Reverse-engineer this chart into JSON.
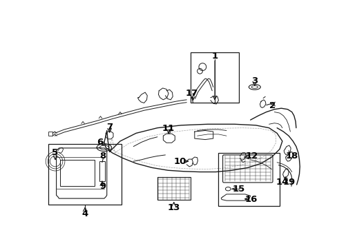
{
  "background_color": "#ffffff",
  "line_color": "#1a1a1a",
  "label_color": "#000000",
  "fig_width": 4.89,
  "fig_height": 3.6,
  "dpi": 100,
  "font_size": 8.5
}
